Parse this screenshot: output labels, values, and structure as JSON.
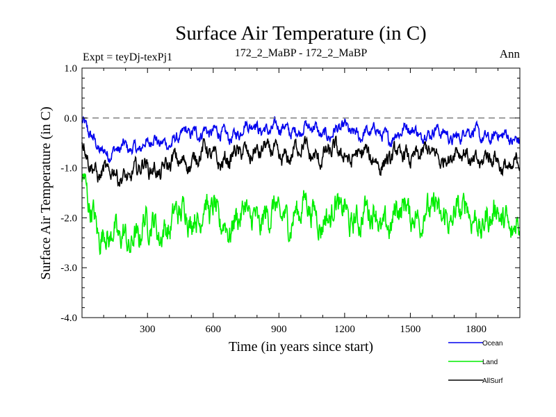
{
  "chart_data": {
    "type": "line",
    "title": "Surface Air Temperature (in C)",
    "subtitle_left": "Expt = teyDj-texPj1",
    "subtitle_center": "172_2_MaBP - 172_2_MaBP",
    "subtitle_right": "Ann",
    "xlabel": "Time (in years since start)",
    "ylabel": "Surface Air Temperature (in C)",
    "xlim": [
      1,
      2000
    ],
    "ylim": [
      -4.0,
      1.0
    ],
    "x_ticks": [
      300,
      600,
      900,
      1200,
      1500,
      1800
    ],
    "x_tick_labels": [
      "300",
      "600",
      "900",
      "1200",
      "1500",
      "1800"
    ],
    "y_ticks": [
      1.0,
      0.0,
      -1.0,
      -2.0,
      -3.0,
      -4.0
    ],
    "y_tick_labels": [
      "1.0",
      "0.0",
      "-1.0",
      "-2.0",
      "-3.0",
      "-4.0"
    ],
    "reference_line": {
      "y": 0.0,
      "style": "dashed",
      "color": "#808080"
    },
    "legend_position": "bottom-right",
    "series": [
      {
        "name": "Ocean",
        "color": "#0000ee",
        "x": [
          1,
          60,
          150,
          250,
          350,
          450,
          560,
          600,
          700,
          800,
          850,
          900,
          1000,
          1100,
          1200,
          1300,
          1400,
          1500,
          1600,
          1700,
          1800,
          1900,
          2000
        ],
        "values": [
          -0.1,
          -0.55,
          -0.7,
          -0.55,
          -0.5,
          -0.4,
          -0.2,
          -0.35,
          -0.3,
          -0.15,
          -0.2,
          -0.25,
          -0.2,
          -0.3,
          -0.25,
          -0.3,
          -0.35,
          -0.25,
          -0.3,
          -0.35,
          -0.3,
          -0.4,
          -0.4
        ]
      },
      {
        "name": "Land",
        "color": "#00ee00",
        "x": [
          1,
          60,
          150,
          250,
          350,
          450,
          560,
          600,
          700,
          800,
          850,
          900,
          1000,
          1100,
          1200,
          1300,
          1400,
          1500,
          1600,
          1700,
          1800,
          1900,
          2000
        ],
        "values": [
          -1.4,
          -2.05,
          -2.5,
          -2.3,
          -2.2,
          -2.0,
          -1.85,
          -2.0,
          -2.1,
          -1.9,
          -2.0,
          -2.0,
          -1.85,
          -1.95,
          -1.9,
          -2.0,
          -2.05,
          -1.85,
          -1.95,
          -1.9,
          -2.0,
          -2.05,
          -2.1
        ]
      },
      {
        "name": "AllSurf",
        "color": "#000000",
        "x": [
          1,
          60,
          150,
          250,
          350,
          450,
          560,
          600,
          700,
          800,
          850,
          900,
          1000,
          1100,
          1200,
          1300,
          1400,
          1500,
          1600,
          1700,
          1800,
          1900,
          2000
        ],
        "values": [
          -0.6,
          -1.0,
          -1.2,
          -1.05,
          -1.0,
          -0.9,
          -0.7,
          -0.8,
          -0.8,
          -0.6,
          -0.7,
          -0.75,
          -0.65,
          -0.75,
          -0.7,
          -0.8,
          -0.85,
          -0.7,
          -0.75,
          -0.75,
          -0.8,
          -0.9,
          -0.95
        ]
      }
    ]
  }
}
